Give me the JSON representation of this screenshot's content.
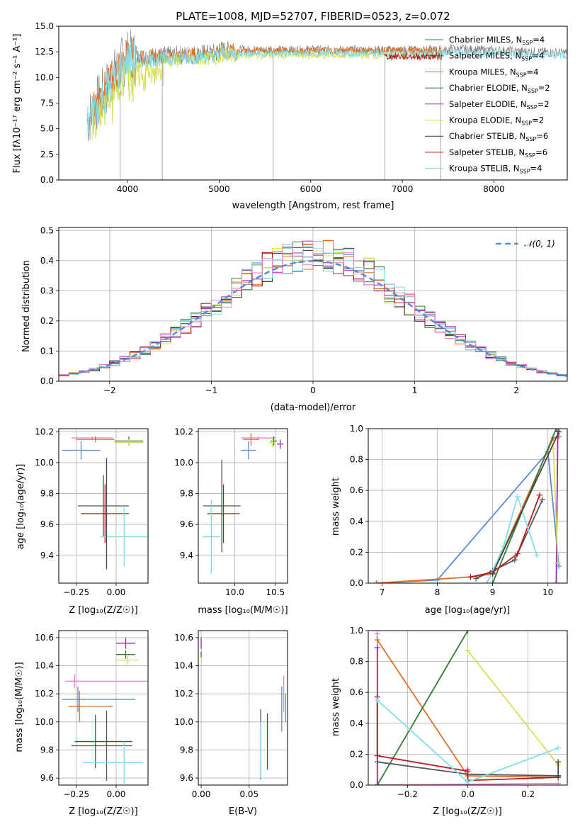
{
  "figure": {
    "title": "PLATE=1008, MJD=52707, FIBERID=0523, z=0.072"
  },
  "chart_data": [
    {
      "id": "spectrum",
      "type": "line",
      "xlabel": "wavelength [Angstrom, rest frame]",
      "ylabel": "Flux [fλ10⁻¹⁷ erg cm⁻² s⁻¹ A⁻¹]",
      "xlim": [
        3250,
        8800
      ],
      "ylim": [
        0,
        15
      ],
      "xticks": [
        4000,
        5000,
        6000,
        7000,
        8000
      ],
      "yticks": [
        0.0,
        2.5,
        5.0,
        7.5,
        10.0,
        12.5,
        15.0
      ],
      "ytick_labels": [
        "0.0",
        "2.5",
        "5.0",
        "7.5",
        "10.0",
        "12.5",
        "15.0"
      ],
      "grid": false,
      "legend_position": "right",
      "legend": [
        {
          "base": "Chabrier MILES, N",
          "sub": "SSP",
          "tail": "=4",
          "color": "#1f77b4"
        },
        {
          "base": "Salpeter MILES, N",
          "sub": "SSP",
          "tail": "=4",
          "color": "#555555"
        },
        {
          "base": "Kroupa MILES, N",
          "sub": "SSP",
          "tail": "=4",
          "color": "#e07020"
        },
        {
          "base": "Chabrier ELODIE, N",
          "sub": "SSP",
          "tail": "=2",
          "color": "#2e7d32"
        },
        {
          "base": "Salpeter ELODIE, N",
          "sub": "SSP",
          "tail": "=2",
          "color": "#9c27b0"
        },
        {
          "base": "Kroupa ELODIE, N",
          "sub": "SSP",
          "tail": "=2",
          "color": "#d4e157"
        },
        {
          "base": "Chabrier STELIB, N",
          "sub": "SSP",
          "tail": "=6",
          "color": "#333333"
        },
        {
          "base": "Salpeter STELIB, N",
          "sub": "SSP",
          "tail": "=6",
          "color": "#b71c1c"
        },
        {
          "base": "Kroupa STELIB, N",
          "sub": "SSP",
          "tail": "=4",
          "color": "#80deea"
        }
      ],
      "series": [
        {
          "color": "#808080",
          "x_range": [
            3560,
            8800
          ],
          "level": 12.9
        },
        {
          "color": "#e07020",
          "x_range": [
            3620,
            7430
          ],
          "level": 12.9
        },
        {
          "color": "#d4e157",
          "x_range": [
            3620,
            7430
          ],
          "level": 12.4
        },
        {
          "color": "#80deea",
          "x_range": [
            3560,
            8800
          ],
          "level": 12.6
        },
        {
          "color": "#b71c1c",
          "x_range": [
            6800,
            7430
          ],
          "level": 12.3
        }
      ]
    },
    {
      "id": "residuals",
      "type": "histogram",
      "xlabel": "(data-model)/error",
      "ylabel": "Normed distribution",
      "xlim": [
        -2.5,
        2.5
      ],
      "ylim": [
        0,
        0.51
      ],
      "xticks": [
        -2,
        -1,
        0,
        1,
        2
      ],
      "yticks": [
        0.0,
        0.1,
        0.2,
        0.3,
        0.4,
        0.5
      ],
      "ytick_labels": [
        "0.0",
        "0.1",
        "0.2",
        "0.3",
        "0.4",
        "0.5"
      ],
      "grid": true,
      "legend": [
        {
          "label": "𝒩(0, 1)",
          "color": "#5b8bd6",
          "style": "dashed"
        }
      ],
      "bin_edges": [
        -2.5,
        2.5
      ],
      "bin_width": 0.1,
      "normal_curve": {
        "mu": 0,
        "sigma": 1
      },
      "series_colors": [
        "#5b8bd6",
        "#e07020",
        "#2e7d32",
        "#9c27b0",
        "#d4e157",
        "#333333",
        "#b71c1c",
        "#80deea",
        "#ee82c8"
      ]
    },
    {
      "id": "age_vs_Z",
      "type": "errorbar",
      "xlabel": "Z [log₁₀(Z/Z☉)]",
      "ylabel": "age  [log₁₀(age/yr)]",
      "xlim": [
        -0.36,
        0.2
      ],
      "ylim": [
        9.22,
        10.22
      ],
      "xticks": [
        -0.25,
        0.0
      ],
      "xtick_labels": [
        "−0.25",
        "0.00"
      ],
      "yticks": [
        9.4,
        9.6,
        9.8,
        10.0,
        10.2
      ],
      "ytick_labels": [
        "9.4",
        "9.6",
        "9.8",
        "10.0",
        "10.2"
      ],
      "grid": true,
      "points": [
        {
          "x": -0.15,
          "xerr": 0.13,
          "y": 10.16,
          "yerr": 0.01,
          "color": "#ee82c8"
        },
        {
          "x": -0.13,
          "xerr": 0.12,
          "y": 10.15,
          "yerr": 0.02,
          "color": "#e07020"
        },
        {
          "x": -0.22,
          "xerr": 0.12,
          "y": 10.08,
          "yerr": 0.06,
          "color": "#5b8bd6"
        },
        {
          "x": 0.08,
          "xerr": 0.09,
          "y": 10.14,
          "yerr": 0.03,
          "color": "#2e7d32"
        },
        {
          "x": 0.08,
          "xerr": 0.09,
          "y": 10.13,
          "yerr": 0.02,
          "color": "#d4e157"
        },
        {
          "x": -0.08,
          "xerr": 0.16,
          "y": 9.72,
          "yerr": 0.2,
          "color": "#555555"
        },
        {
          "x": -0.07,
          "xerr": 0.15,
          "y": 9.67,
          "yerr": 0.19,
          "color": "#b71c1c"
        },
        {
          "x": 0.05,
          "xerr": 0.15,
          "y": 9.52,
          "yerr": 0.19,
          "color": "#80deea"
        },
        {
          "x": -0.06,
          "xerr": 0.0,
          "y": 9.67,
          "yerr": 0.36,
          "color": "#444444"
        }
      ]
    },
    {
      "id": "age_vs_mass",
      "type": "errorbar",
      "xlabel": "mass [log₁₀(M/M☉)]",
      "ylabel": "",
      "xlim": [
        9.55,
        10.65
      ],
      "ylim": [
        9.22,
        10.22
      ],
      "xticks": [
        10.0,
        10.5
      ],
      "xtick_labels": [
        "10.0",
        "10.5"
      ],
      "yticks": [
        9.4,
        9.6,
        9.8,
        10.0,
        10.2
      ],
      "ytick_labels": [
        "9.4",
        "9.6",
        "9.8",
        "10.0",
        "10.2"
      ],
      "grid": true,
      "points": [
        {
          "x": 10.29,
          "xerr": 0.21,
          "y": 10.16,
          "yerr": 0.01,
          "color": "#ee82c8"
        },
        {
          "x": 10.2,
          "xerr": 0.1,
          "y": 10.15,
          "yerr": 0.04,
          "color": "#e07020"
        },
        {
          "x": 10.17,
          "xerr": 0.09,
          "y": 10.08,
          "yerr": 0.06,
          "color": "#5b8bd6"
        },
        {
          "x": 10.48,
          "xerr": 0.04,
          "y": 10.14,
          "yerr": 0.03,
          "color": "#2e7d32"
        },
        {
          "x": 10.46,
          "xerr": 0.04,
          "y": 10.13,
          "yerr": 0.03,
          "color": "#d4e157"
        },
        {
          "x": 10.56,
          "xerr": 0.04,
          "y": 10.12,
          "yerr": 0.03,
          "color": "#9c27b0"
        },
        {
          "x": 9.84,
          "xerr": 0.23,
          "y": 9.72,
          "yerr": 0.3,
          "color": "#555555"
        },
        {
          "x": 9.86,
          "xerr": 0.2,
          "y": 9.67,
          "yerr": 0.19,
          "color": "#b71c1c"
        },
        {
          "x": 9.71,
          "xerr": 0.11,
          "y": 9.52,
          "yerr": 0.24,
          "color": "#80deea"
        }
      ]
    },
    {
      "id": "mass_weight_vs_age",
      "type": "line",
      "xlabel": "age  [log₁₀(age/yr)]",
      "ylabel": "mass weight",
      "xlim": [
        6.75,
        10.35
      ],
      "ylim": [
        0,
        1
      ],
      "xticks": [
        7,
        8,
        9,
        10
      ],
      "yticks": [
        0.0,
        0.2,
        0.4,
        0.6,
        0.8,
        1.0
      ],
      "ytick_labels": [
        "0.0",
        "0.2",
        "0.4",
        "0.6",
        "0.8",
        "1.0"
      ],
      "grid": true,
      "series": [
        {
          "color": "#5b8bd6",
          "x": [
            6.9,
            8.0,
            10.0,
            10.2
          ],
          "y": [
            0.0,
            0.02,
            0.85,
            0.11
          ]
        },
        {
          "color": "#e07020",
          "x": [
            6.9,
            8.6,
            9.0,
            10.1,
            10.2
          ],
          "y": [
            0.0,
            0.04,
            0.06,
            0.94,
            0.95
          ]
        },
        {
          "color": "#2e7d32",
          "x": [
            9.0,
            10.15
          ],
          "y": [
            0.0,
            1.0
          ]
        },
        {
          "color": "#9c27b0",
          "x": [
            10.15,
            10.18
          ],
          "y": [
            0.0,
            0.98
          ]
        },
        {
          "color": "#d4e157",
          "x": [
            10.1,
            10.18
          ],
          "y": [
            0.87,
            0.13
          ]
        },
        {
          "color": "#555555",
          "x": [
            8.7,
            9.0,
            9.4,
            9.9
          ],
          "y": [
            0.03,
            0.08,
            0.15,
            0.54
          ]
        },
        {
          "color": "#b71c1c",
          "x": [
            8.6,
            9.0,
            9.45,
            9.85
          ],
          "y": [
            0.04,
            0.07,
            0.19,
            0.57
          ]
        },
        {
          "color": "#80deea",
          "x": [
            8.9,
            9.2,
            9.45,
            9.8
          ],
          "y": [
            0.0,
            0.24,
            0.56,
            0.18
          ]
        },
        {
          "color": "#444444",
          "x": [
            9.0,
            10.2
          ],
          "y": [
            0.06,
            0.98
          ]
        }
      ]
    },
    {
      "id": "mass_vs_Z",
      "type": "errorbar",
      "xlabel": "Z [log₁₀(Z/Z☉)]",
      "ylabel": "mass [log₁₀(M/M☉)]",
      "xlim": [
        -0.36,
        0.2
      ],
      "ylim": [
        9.55,
        10.65
      ],
      "xticks": [
        -0.25,
        0.0
      ],
      "xtick_labels": [
        "−0.25",
        "0.00"
      ],
      "yticks": [
        9.6,
        9.8,
        10.0,
        10.2,
        10.4,
        10.6
      ],
      "ytick_labels": [
        "9.6",
        "9.8",
        "10.0",
        "10.2",
        "10.4",
        "10.6"
      ],
      "grid": true,
      "points": [
        {
          "x": 0.06,
          "xerr": 0.06,
          "y": 10.56,
          "yerr": 0.04,
          "color": "#9c27b0"
        },
        {
          "x": 0.06,
          "xerr": 0.06,
          "y": 10.48,
          "yerr": 0.03,
          "color": "#2e7d32"
        },
        {
          "x": 0.07,
          "xerr": 0.07,
          "y": 10.44,
          "yerr": 0.03,
          "color": "#d4e157"
        },
        {
          "x": -0.26,
          "xerr": 0.02,
          "y": 10.29,
          "yerr": 0.05,
          "color": "#ee82c8"
        },
        {
          "x": -0.06,
          "xerr": 0.26,
          "y": 10.29,
          "yerr": 0.0,
          "color": "#ee82c8"
        },
        {
          "x": -0.11,
          "xerr": 0.23,
          "y": 10.16,
          "yerr": 0.0,
          "color": "#5b8bd6"
        },
        {
          "x": -0.24,
          "xerr": 0.0,
          "y": 10.16,
          "yerr": 0.09,
          "color": "#5b8bd6"
        },
        {
          "x": -0.16,
          "xerr": 0.14,
          "y": 10.11,
          "yerr": 0.0,
          "color": "#e07020"
        },
        {
          "x": -0.23,
          "xerr": 0.0,
          "y": 10.11,
          "yerr": 0.11,
          "color": "#e07020"
        },
        {
          "x": -0.09,
          "xerr": 0.19,
          "y": 9.83,
          "yerr": 0.0,
          "color": "#555555"
        },
        {
          "x": -0.06,
          "xerr": 0.0,
          "y": 9.83,
          "yerr": 0.25,
          "color": "#555555"
        },
        {
          "x": -0.08,
          "xerr": 0.18,
          "y": 9.86,
          "yerr": 0.0,
          "color": "#b71c1c"
        },
        {
          "x": -0.13,
          "xerr": 0.0,
          "y": 9.86,
          "yerr": 0.19,
          "color": "#b71c1c"
        },
        {
          "x": -0.02,
          "xerr": 0.19,
          "y": 9.71,
          "yerr": 0.0,
          "color": "#80deea"
        },
        {
          "x": 0.05,
          "xerr": 0.0,
          "y": 9.71,
          "yerr": 0.15,
          "color": "#80deea"
        }
      ]
    },
    {
      "id": "mass_vs_ebv",
      "type": "errorbar",
      "xlabel": "E(B-V)",
      "ylabel": "",
      "xlim": [
        -0.003,
        0.09
      ],
      "ylim": [
        9.55,
        10.65
      ],
      "xticks": [
        0.0,
        0.05
      ],
      "xtick_labels": [
        "0.00",
        "0.05"
      ],
      "yticks": [
        9.6,
        9.8,
        10.0,
        10.2,
        10.4,
        10.6
      ],
      "ytick_labels": [
        "9.6",
        "9.8",
        "10.0",
        "10.2",
        "10.4",
        "10.6"
      ],
      "grid": true,
      "points": [
        {
          "x": 0.0,
          "xerr": 0.0,
          "y": 10.56,
          "yerr": 0.04,
          "color": "#9c27b0"
        },
        {
          "x": 0.0,
          "xerr": 0.0,
          "y": 10.46,
          "yerr": 0.04,
          "color": "#d4e157"
        },
        {
          "x": 0.0,
          "xerr": 0.0,
          "y": 10.48,
          "yerr": 0.02,
          "color": "#2e7d32"
        },
        {
          "x": 0.062,
          "xerr": 0.0,
          "y": 9.84,
          "yerr": 0.25,
          "color": "#555555"
        },
        {
          "x": 0.062,
          "xerr": 0.0,
          "y": 9.8,
          "yerr": 0.2,
          "color": "#80deea"
        },
        {
          "x": 0.069,
          "xerr": 0.0,
          "y": 9.86,
          "yerr": 0.2,
          "color": "#b71c1c"
        },
        {
          "x": 0.084,
          "xerr": 0.0,
          "y": 10.09,
          "yerr": 0.16,
          "color": "#5b8bd6"
        },
        {
          "x": 0.086,
          "xerr": 0.0,
          "y": 10.2,
          "yerr": 0.13,
          "color": "#ee82c8"
        },
        {
          "x": 0.088,
          "xerr": 0.0,
          "y": 10.1,
          "yerr": 0.1,
          "color": "#e07020"
        }
      ]
    },
    {
      "id": "mass_weight_vs_Z",
      "type": "line",
      "xlabel": "Z [log₁₀(Z/Z☉)]",
      "ylabel": "mass weight",
      "xlim": [
        -0.33,
        0.33
      ],
      "ylim": [
        0,
        1
      ],
      "xticks": [
        -0.2,
        0.0,
        0.2
      ],
      "xtick_labels": [
        "−0.2",
        "0.0",
        "0.2"
      ],
      "yticks": [
        0.0,
        0.2,
        0.4,
        0.6,
        0.8,
        1.0
      ],
      "ytick_labels": [
        "0.0",
        "0.2",
        "0.4",
        "0.6",
        "0.8",
        "1.0"
      ],
      "grid": true,
      "series": [
        {
          "color": "#ee82c8",
          "x": [
            -0.3,
            -0.3,
            0.3
          ],
          "y": [
            0.98,
            0.0,
            0.01
          ]
        },
        {
          "color": "#e07020",
          "x": [
            -0.3,
            0.0,
            0.3
          ],
          "y": [
            0.94,
            0.06,
            0.05
          ]
        },
        {
          "color": "#5b8bd6",
          "x": [
            0.0,
            0.0
          ],
          "y": [
            0.1,
            0.0
          ]
        },
        {
          "color": "#2e7d32",
          "x": [
            -0.3,
            0.0
          ],
          "y": [
            0.0,
            1.0
          ]
        },
        {
          "color": "#d4e157",
          "x": [
            0.0,
            0.3
          ],
          "y": [
            0.87,
            0.13
          ]
        },
        {
          "color": "#9c27b0",
          "x": [
            -0.3,
            -0.3
          ],
          "y": [
            0.89,
            0.0
          ]
        },
        {
          "color": "#555555",
          "x": [
            -0.3,
            0.0,
            0.3
          ],
          "y": [
            0.15,
            0.07,
            0.06
          ]
        },
        {
          "color": "#b71c1c",
          "x": [
            -0.3,
            -0.3,
            0.0,
            0.0,
            0.3
          ],
          "y": [
            0.57,
            0.19,
            0.09,
            0.03,
            0.05
          ]
        },
        {
          "color": "#80deea",
          "x": [
            -0.3,
            0.0,
            0.3
          ],
          "y": [
            0.55,
            0.02,
            0.24
          ]
        },
        {
          "color": "#444444",
          "x": [
            0.3,
            0.3
          ],
          "y": [
            0.15,
            0.06
          ]
        }
      ]
    }
  ]
}
